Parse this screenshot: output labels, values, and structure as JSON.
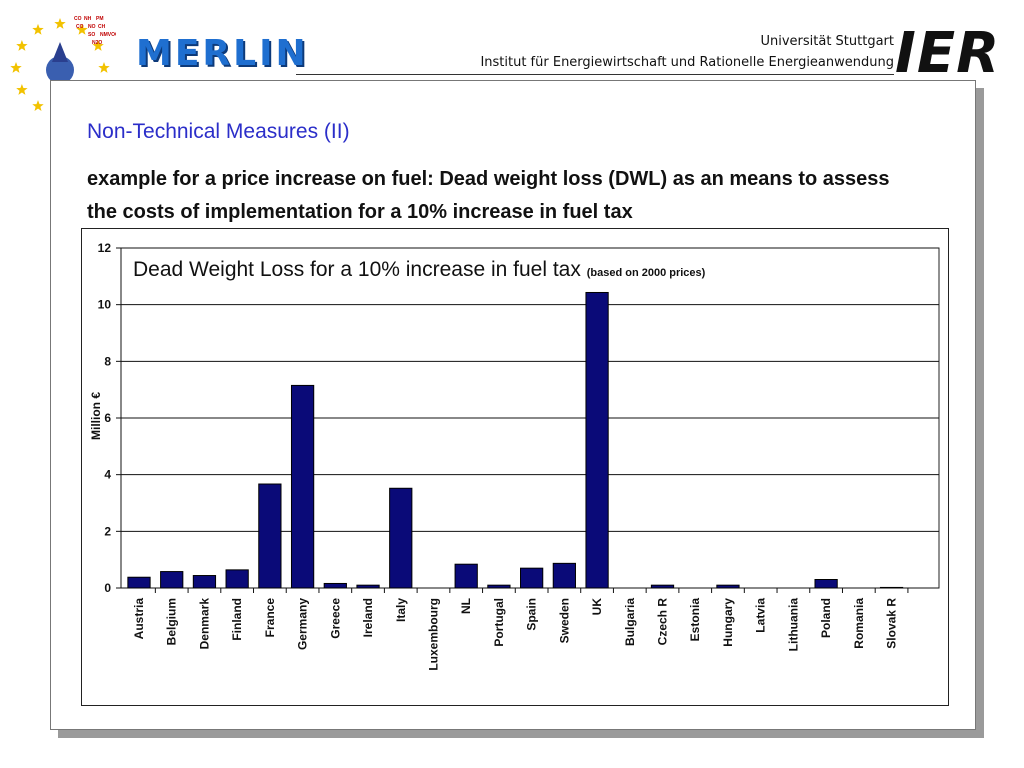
{
  "header": {
    "logo_text": "MERLIN",
    "emblem_text": [
      "CO",
      "NH",
      "PM",
      "CO",
      "NO",
      "CH",
      "SO",
      "NMVOC",
      "N2O"
    ],
    "university": "Universität Stuttgart",
    "institute": "Institut für Energiewirtschaft und Rationelle Energieanwendung",
    "ier_logo": "IER"
  },
  "slide": {
    "title": "Non-Technical Measures (II)",
    "subtitle": "example for a price increase on fuel: Dead weight loss (DWL) as an means to assess the costs of implementation for a 10% increase in fuel tax"
  },
  "colors": {
    "bar": "#0a0a78",
    "title_blue": "#2b2ec9",
    "merlin_blue": "#1f6fd0"
  },
  "chart_data": {
    "type": "bar",
    "title": "Dead Weight Loss for a 10% increase in fuel tax",
    "title_note": "(based on 2000 prices)",
    "xlabel": "",
    "ylabel": "Million €",
    "ylim": [
      0,
      12
    ],
    "yticks": [
      0,
      2,
      4,
      6,
      8,
      10,
      12
    ],
    "grid": true,
    "categories": [
      "Austria",
      "Belgium",
      "Denmark",
      "Finland",
      "France",
      "Germany",
      "Greece",
      "Ireland",
      "Italy",
      "Luxembourg",
      "NL",
      "Portugal",
      "Spain",
      "Sweden",
      "UK",
      "Bulgaria",
      "Czech R",
      "Estonia",
      "Hungary",
      "Latvia",
      "Lithuania",
      "Poland",
      "Romania",
      "Slovak R"
    ],
    "values": [
      0.38,
      0.58,
      0.44,
      0.64,
      3.67,
      7.15,
      0.16,
      0.1,
      3.52,
      0.0,
      0.84,
      0.1,
      0.7,
      0.87,
      10.43,
      0.0,
      0.1,
      0.0,
      0.1,
      0.0,
      0.0,
      0.3,
      0.0,
      0.02
    ]
  }
}
